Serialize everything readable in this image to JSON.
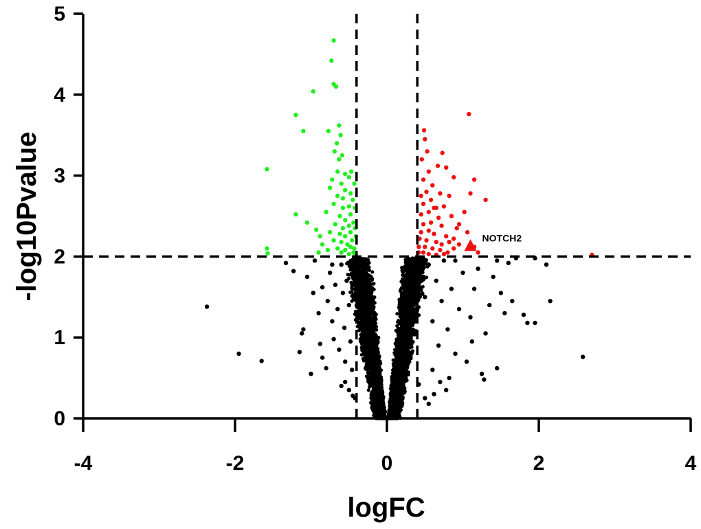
{
  "chart_data": {
    "type": "scatter",
    "title": "",
    "xlabel": "logFC",
    "ylabel": "-log10Pvalue",
    "xlim": [
      -4,
      4
    ],
    "ylim": [
      0,
      5
    ],
    "xticks": [
      "-4",
      "-2",
      "0",
      "2",
      "4"
    ],
    "yticks": [
      "0",
      "1",
      "2",
      "3",
      "4",
      "5"
    ],
    "grid": false,
    "thresholds": {
      "logfc": [
        -0.4,
        0.4
      ],
      "neglog10p": 2
    },
    "colors": {
      "down": "#22ee22",
      "up": "#ee1111",
      "ns": "#000000",
      "highlight": "#ee1111",
      "threshold_line": "#000000"
    },
    "highlight": {
      "label": "NOTCH2",
      "x": 1.1,
      "y": 2.12,
      "marker": "triangle"
    },
    "series": [
      {
        "category": "down",
        "points": [
          [
            -0.7,
            4.67
          ],
          [
            -0.73,
            4.42
          ],
          [
            -0.7,
            4.13
          ],
          [
            -0.67,
            4.1
          ],
          [
            -0.97,
            4.04
          ],
          [
            -1.2,
            3.75
          ],
          [
            -1.1,
            3.55
          ],
          [
            -0.77,
            3.55
          ],
          [
            -0.63,
            3.62
          ],
          [
            -0.61,
            3.5
          ],
          [
            -0.66,
            3.4
          ],
          [
            -0.69,
            3.3
          ],
          [
            -0.63,
            3.2
          ],
          [
            -0.59,
            3.25
          ],
          [
            -0.65,
            3.05
          ],
          [
            -0.55,
            3.02
          ],
          [
            -0.5,
            2.98
          ],
          [
            -0.47,
            3.05
          ],
          [
            -0.72,
            2.95
          ],
          [
            -0.75,
            2.85
          ],
          [
            -0.6,
            2.9
          ],
          [
            -0.55,
            2.82
          ],
          [
            -0.48,
            2.78
          ],
          [
            -0.43,
            2.9
          ],
          [
            -0.65,
            2.75
          ],
          [
            -0.7,
            2.65
          ],
          [
            -0.58,
            2.6
          ],
          [
            -0.5,
            2.62
          ],
          [
            -0.45,
            2.7
          ],
          [
            -0.8,
            2.55
          ],
          [
            -0.62,
            2.5
          ],
          [
            -0.55,
            2.45
          ],
          [
            -0.48,
            2.52
          ],
          [
            -0.42,
            2.6
          ],
          [
            -0.68,
            2.4
          ],
          [
            -0.58,
            2.35
          ],
          [
            -0.5,
            2.38
          ],
          [
            -0.44,
            2.42
          ],
          [
            -0.75,
            2.3
          ],
          [
            -0.62,
            2.28
          ],
          [
            -0.55,
            2.25
          ],
          [
            -0.48,
            2.3
          ],
          [
            -0.42,
            2.35
          ],
          [
            -0.7,
            2.2
          ],
          [
            -0.6,
            2.18
          ],
          [
            -0.52,
            2.15
          ],
          [
            -0.46,
            2.2
          ],
          [
            -0.41,
            2.25
          ],
          [
            -0.85,
            2.15
          ],
          [
            -0.65,
            2.1
          ],
          [
            -0.55,
            2.08
          ],
          [
            -0.48,
            2.12
          ],
          [
            -0.43,
            2.1
          ],
          [
            -0.9,
            2.05
          ],
          [
            -0.78,
            2.08
          ],
          [
            -0.6,
            2.05
          ],
          [
            -0.5,
            2.03
          ],
          [
            -0.44,
            2.05
          ],
          [
            -0.41,
            2.02
          ],
          [
            -0.58,
            2.72
          ],
          [
            -1.58,
            3.08
          ],
          [
            -1.2,
            2.52
          ],
          [
            -1.05,
            2.42
          ],
          [
            -0.93,
            2.33
          ],
          [
            -0.88,
            2.25
          ],
          [
            -1.58,
            2.1
          ],
          [
            -1.57,
            2.04
          ]
        ]
      },
      {
        "category": "up",
        "points": [
          [
            1.08,
            3.76
          ],
          [
            0.49,
            3.56
          ],
          [
            0.5,
            3.45
          ],
          [
            0.53,
            3.3
          ],
          [
            0.46,
            3.2
          ],
          [
            0.73,
            3.28
          ],
          [
            0.78,
            3.1
          ],
          [
            0.67,
            3.12
          ],
          [
            0.55,
            3.05
          ],
          [
            0.48,
            2.95
          ],
          [
            0.88,
            2.98
          ],
          [
            1.15,
            2.95
          ],
          [
            0.6,
            2.88
          ],
          [
            0.52,
            2.8
          ],
          [
            0.45,
            2.75
          ],
          [
            0.7,
            2.78
          ],
          [
            0.82,
            2.75
          ],
          [
            1.1,
            2.78
          ],
          [
            0.58,
            2.7
          ],
          [
            0.48,
            2.65
          ],
          [
            0.65,
            2.6
          ],
          [
            0.75,
            2.62
          ],
          [
            1.3,
            2.7
          ],
          [
            0.55,
            2.55
          ],
          [
            0.45,
            2.52
          ],
          [
            0.68,
            2.48
          ],
          [
            0.85,
            2.5
          ],
          [
            0.58,
            2.42
          ],
          [
            0.48,
            2.4
          ],
          [
            0.72,
            2.38
          ],
          [
            0.95,
            2.4
          ],
          [
            1.02,
            2.55
          ],
          [
            1.06,
            2.3
          ],
          [
            0.55,
            2.32
          ],
          [
            0.45,
            2.3
          ],
          [
            0.62,
            2.28
          ],
          [
            0.78,
            2.25
          ],
          [
            0.88,
            2.22
          ],
          [
            0.52,
            2.2
          ],
          [
            0.43,
            2.22
          ],
          [
            0.65,
            2.18
          ],
          [
            0.72,
            2.15
          ],
          [
            0.82,
            2.18
          ],
          [
            0.95,
            2.15
          ],
          [
            0.5,
            2.12
          ],
          [
            0.42,
            2.12
          ],
          [
            0.6,
            2.1
          ],
          [
            0.7,
            2.08
          ],
          [
            0.88,
            2.1
          ],
          [
            1.15,
            2.12
          ],
          [
            1.2,
            2.05
          ],
          [
            0.48,
            2.05
          ],
          [
            0.42,
            2.05
          ],
          [
            0.55,
            2.03
          ],
          [
            0.65,
            2.02
          ],
          [
            0.75,
            2.03
          ],
          [
            0.8,
            2.05
          ],
          [
            2.7,
            2.02
          ],
          [
            0.62,
            2.6
          ],
          [
            0.92,
            2.35
          ]
        ]
      },
      {
        "category": "ns",
        "points": [
          [
            -2.37,
            1.38
          ],
          [
            -1.95,
            0.8
          ],
          [
            -1.65,
            0.71
          ],
          [
            -1.23,
            1.82
          ],
          [
            -1.15,
            0.82
          ],
          [
            -1.12,
            1.05
          ],
          [
            -1.1,
            1.1
          ],
          [
            -1.05,
            1.75
          ],
          [
            -1.0,
            0.55
          ],
          [
            -0.95,
            1.95
          ],
          [
            -0.9,
            1.3
          ],
          [
            -0.88,
            0.92
          ],
          [
            -0.85,
            1.62
          ],
          [
            -0.8,
            0.62
          ],
          [
            -0.78,
            1.45
          ],
          [
            -0.75,
            1.8
          ],
          [
            -0.72,
            1.2
          ],
          [
            -0.7,
            0.98
          ],
          [
            -0.68,
            1.65
          ],
          [
            -0.65,
            1.35
          ],
          [
            -0.63,
            0.85
          ],
          [
            -0.6,
            1.9
          ],
          [
            -0.58,
            1.55
          ],
          [
            -0.56,
            1.12
          ],
          [
            -0.55,
            0.7
          ],
          [
            -0.53,
            1.7
          ],
          [
            -0.5,
            1.4
          ],
          [
            -0.48,
            0.95
          ],
          [
            -0.46,
            0.6
          ],
          [
            -0.45,
            1.85
          ],
          [
            -0.5,
            0.35
          ],
          [
            -0.55,
            0.45
          ],
          [
            -0.85,
            0.75
          ],
          [
            -0.97,
            1.55
          ],
          [
            -0.72,
            1.9
          ],
          [
            -1.33,
            1.92
          ],
          [
            0.45,
            1.85
          ],
          [
            0.5,
            1.5
          ],
          [
            0.55,
            1.9
          ],
          [
            0.6,
            1.2
          ],
          [
            0.65,
            1.7
          ],
          [
            0.68,
            0.9
          ],
          [
            0.72,
            1.45
          ],
          [
            0.75,
            1.95
          ],
          [
            0.8,
            1.1
          ],
          [
            0.85,
            1.6
          ],
          [
            0.9,
            0.8
          ],
          [
            0.95,
            1.35
          ],
          [
            1.0,
            1.8
          ],
          [
            1.05,
            0.7
          ],
          [
            1.1,
            1.25
          ],
          [
            1.15,
            1.6
          ],
          [
            1.2,
            1.85
          ],
          [
            1.25,
            0.55
          ],
          [
            1.3,
            1.05
          ],
          [
            1.35,
            1.4
          ],
          [
            1.4,
            1.75
          ],
          [
            1.45,
            0.62
          ],
          [
            1.5,
            1.55
          ],
          [
            1.55,
            1.3
          ],
          [
            1.65,
            1.45
          ],
          [
            1.8,
            1.28
          ],
          [
            1.85,
            1.18
          ],
          [
            1.95,
            1.18
          ],
          [
            2.1,
            1.9
          ],
          [
            2.15,
            1.45
          ],
          [
            2.58,
            0.76
          ],
          [
            0.6,
            0.6
          ],
          [
            0.7,
            0.45
          ],
          [
            0.82,
            0.5
          ],
          [
            1.28,
            0.48
          ],
          [
            0.9,
            1.95
          ],
          [
            1.7,
            1.98
          ],
          [
            1.95,
            1.98
          ],
          [
            0.5,
            0.25
          ],
          [
            0.62,
            0.3
          ],
          [
            0.55,
            0.18
          ],
          [
            -0.45,
            0.28
          ],
          [
            -0.6,
            0.4
          ],
          [
            0.78,
            0.35
          ],
          [
            1.45,
            1.95
          ],
          [
            1.6,
            1.92
          ],
          [
            0.42,
            0.42
          ],
          [
            -0.42,
            0.25
          ],
          [
            1.12,
            0.95
          ]
        ]
      }
    ]
  }
}
